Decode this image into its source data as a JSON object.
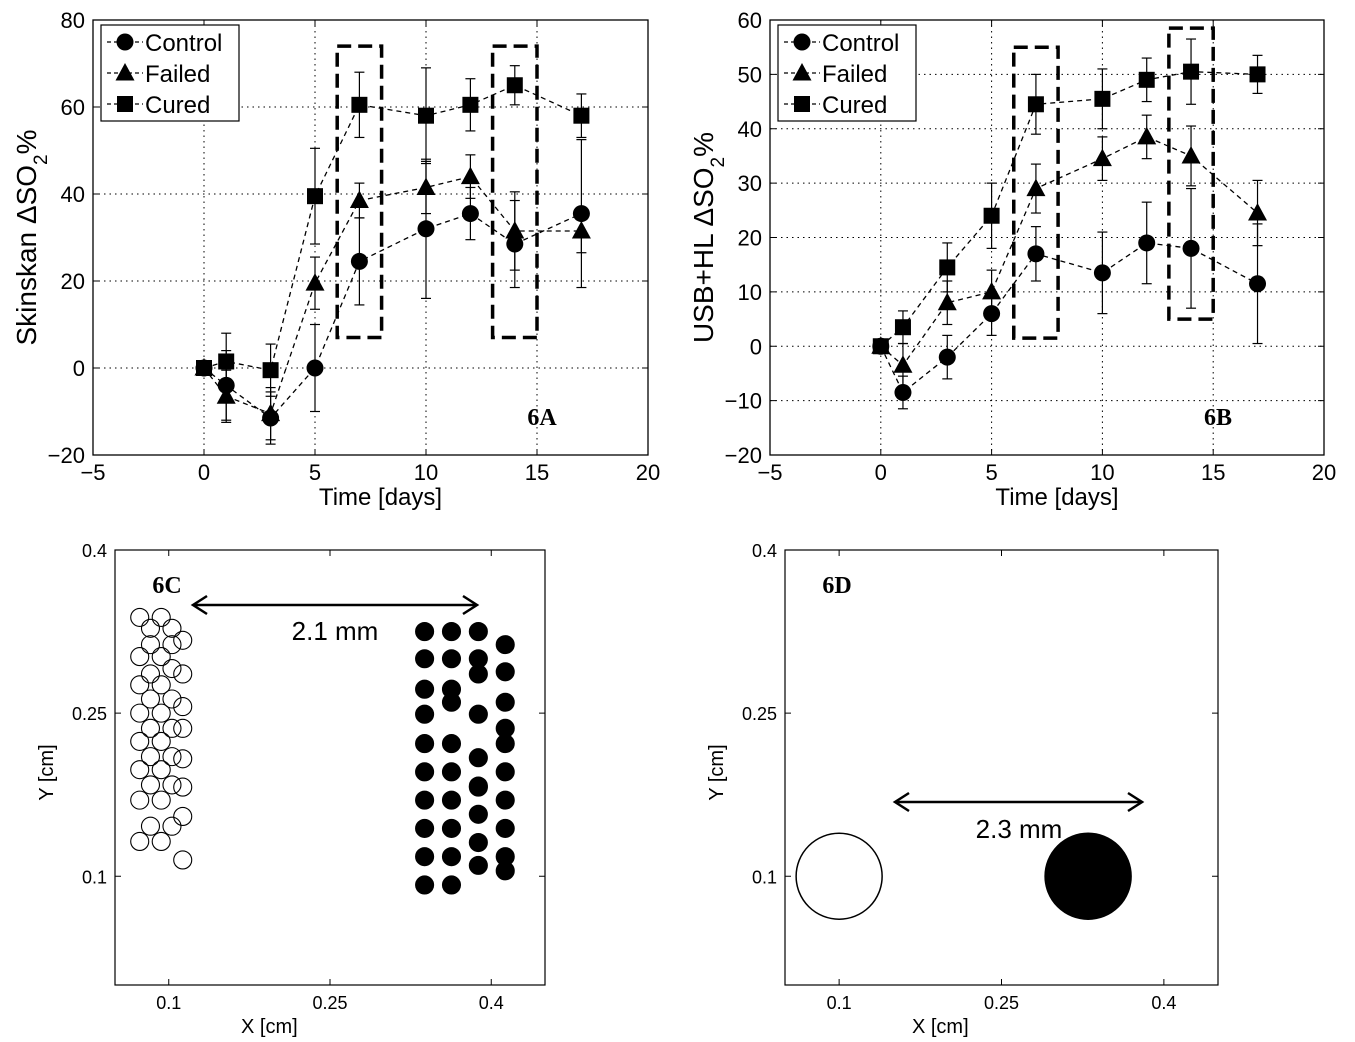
{
  "chart_data": [
    {
      "type": "line",
      "panel_label": "6A",
      "xlabel": "Time [days]",
      "ylabel_prefix": "Skinskan  ΔSO",
      "ylabel_sub": "2",
      "ylabel_suffix": "%",
      "xlim": [
        -5,
        20
      ],
      "ylim": [
        -20,
        80
      ],
      "xticks": [
        -5,
        0,
        5,
        10,
        15,
        20
      ],
      "yticks": [
        -20,
        0,
        20,
        40,
        60,
        80
      ],
      "grid": true,
      "legend_position": "top-left",
      "series": [
        {
          "name": "Control",
          "marker": "circle",
          "x": [
            0,
            1,
            3,
            5,
            7,
            10,
            12,
            14,
            17
          ],
          "y": [
            0,
            -4,
            -11.5,
            0,
            24.5,
            32,
            35.5,
            28.5,
            35.5
          ],
          "err": [
            0,
            8,
            6,
            10,
            10,
            16,
            6,
            10,
            17
          ]
        },
        {
          "name": "Failed",
          "marker": "triangle",
          "x": [
            0,
            1,
            3,
            5,
            7,
            10,
            12,
            14,
            17
          ],
          "y": [
            0,
            -6.5,
            -10.5,
            19.5,
            38.5,
            41.5,
            44,
            31.5,
            31.5
          ],
          "err": [
            0,
            6,
            6,
            6,
            4,
            6,
            5,
            9,
            5
          ]
        },
        {
          "name": "Cured",
          "marker": "square",
          "x": [
            0,
            1,
            3,
            5,
            7,
            10,
            12,
            14,
            17
          ],
          "y": [
            0,
            1.5,
            -0.5,
            39.5,
            60.5,
            58,
            60.5,
            65,
            58
          ],
          "err": [
            0,
            6.5,
            6,
            11,
            7.5,
            11,
            6,
            4.5,
            5
          ]
        }
      ],
      "dashed_boxes_x": [
        [
          6,
          8
        ],
        [
          13,
          15
        ]
      ],
      "dashed_boxes_y": [
        [
          7,
          74
        ],
        [
          7,
          74
        ]
      ]
    },
    {
      "type": "line",
      "panel_label": "6B",
      "xlabel": "Time [days]",
      "ylabel_prefix": "USB+HL  ΔSO",
      "ylabel_sub": "2",
      "ylabel_suffix": "%",
      "xlim": [
        -5,
        20
      ],
      "ylim": [
        -20,
        60
      ],
      "xticks": [
        -5,
        0,
        5,
        10,
        15,
        20
      ],
      "yticks": [
        -20,
        -10,
        0,
        10,
        20,
        30,
        40,
        50,
        60
      ],
      "grid": true,
      "legend_position": "top-left",
      "series": [
        {
          "name": "Control",
          "marker": "circle",
          "x": [
            0,
            1,
            3,
            5,
            7,
            10,
            12,
            14,
            17
          ],
          "y": [
            0,
            -8.5,
            -2,
            6,
            17,
            13.5,
            19,
            18,
            11.5
          ],
          "err": [
            0,
            3,
            4,
            4,
            5,
            7.5,
            7.5,
            11,
            11
          ]
        },
        {
          "name": "Failed",
          "marker": "triangle",
          "x": [
            0,
            1,
            3,
            5,
            7,
            10,
            12,
            14,
            17
          ],
          "y": [
            0,
            -3.5,
            8,
            10,
            29,
            34.5,
            38.5,
            35,
            24.5
          ],
          "err": [
            0,
            4,
            4,
            4,
            4.5,
            4,
            4,
            5.5,
            6
          ]
        },
        {
          "name": "Cured",
          "marker": "square",
          "x": [
            0,
            1,
            3,
            5,
            7,
            10,
            12,
            14,
            17
          ],
          "y": [
            0,
            3.5,
            14.5,
            24,
            44.5,
            45.5,
            49,
            50.5,
            50
          ],
          "err": [
            0,
            3,
            4.5,
            6,
            5.5,
            5.5,
            4,
            6,
            3.5
          ]
        }
      ],
      "dashed_boxes_x": [
        [
          6,
          8
        ],
        [
          13,
          15
        ]
      ],
      "dashed_boxes_y": [
        [
          1.5,
          55
        ],
        [
          5,
          58.5
        ]
      ]
    },
    {
      "type": "scatter",
      "panel_label": "6C",
      "xlabel": "X [cm]",
      "ylabel": "Y [cm]",
      "xlim": [
        0.05,
        0.45
      ],
      "ylim": [
        0.0,
        0.4
      ],
      "xticks": [
        0.1,
        0.25,
        0.4
      ],
      "yticks": [
        0.1,
        0.25,
        0.4
      ],
      "annotation": "2.1 mm",
      "series": [
        {
          "name": "",
          "fill": "none",
          "x": [
            0.073,
            0.093,
            0.113,
            0.083,
            0.103,
            0.073,
            0.093,
            0.113,
            0.083,
            0.103,
            0.073,
            0.093,
            0.113,
            0.083,
            0.103,
            0.073,
            0.093,
            0.113,
            0.083,
            0.103,
            0.073,
            0.093,
            0.113,
            0.083,
            0.103,
            0.073,
            0.093,
            0.113,
            0.083,
            0.103,
            0.073,
            0.093,
            0.113,
            0.083,
            0.103,
            0.073,
            0.093,
            0.113,
            0.083,
            0.103
          ],
          "y": [
            0.338,
            0.338,
            0.317,
            0.328,
            0.328,
            0.302,
            0.302,
            0.286,
            0.313,
            0.313,
            0.276,
            0.276,
            0.256,
            0.286,
            0.291,
            0.25,
            0.25,
            0.236,
            0.263,
            0.263,
            0.224,
            0.224,
            0.208,
            0.236,
            0.236,
            0.198,
            0.198,
            0.182,
            0.21,
            0.21,
            0.17,
            0.17,
            0.155,
            0.184,
            0.184,
            0.132,
            0.132,
            0.115,
            0.146,
            0.146
          ]
        },
        {
          "name": "",
          "fill": "#000000",
          "x": [
            0.338,
            0.363,
            0.388,
            0.413,
            0.338,
            0.363,
            0.388,
            0.413,
            0.338,
            0.363,
            0.388,
            0.413,
            0.338,
            0.363,
            0.388,
            0.413,
            0.338,
            0.363,
            0.388,
            0.413,
            0.338,
            0.363,
            0.388,
            0.413,
            0.338,
            0.363,
            0.388,
            0.413,
            0.338,
            0.363,
            0.388,
            0.413,
            0.338,
            0.363,
            0.388,
            0.413,
            0.338,
            0.363,
            0.388,
            0.413
          ],
          "y": [
            0.325,
            0.325,
            0.325,
            0.313,
            0.3,
            0.3,
            0.3,
            0.288,
            0.272,
            0.272,
            0.286,
            0.26,
            0.249,
            0.26,
            0.249,
            0.236,
            0.222,
            0.222,
            0.209,
            0.222,
            0.196,
            0.196,
            0.182,
            0.196,
            0.17,
            0.17,
            0.183,
            0.17,
            0.144,
            0.144,
            0.157,
            0.144,
            0.118,
            0.118,
            0.131,
            0.118,
            0.092,
            0.092,
            0.11,
            0.105
          ]
        }
      ]
    },
    {
      "type": "scatter",
      "panel_label": "6D",
      "xlabel": "X [cm]",
      "ylabel": "Y [cm]",
      "xlim": [
        0.05,
        0.45
      ],
      "ylim": [
        0.0,
        0.4
      ],
      "xticks": [
        0.1,
        0.25,
        0.4
      ],
      "yticks": [
        0.1,
        0.25,
        0.4
      ],
      "annotation": "2.3 mm",
      "series": [
        {
          "name": "",
          "fill": "none",
          "x": [
            0.1
          ],
          "y": [
            0.1
          ]
        },
        {
          "name": "",
          "fill": "#000000",
          "x": [
            0.33
          ],
          "y": [
            0.1
          ]
        }
      ]
    }
  ]
}
